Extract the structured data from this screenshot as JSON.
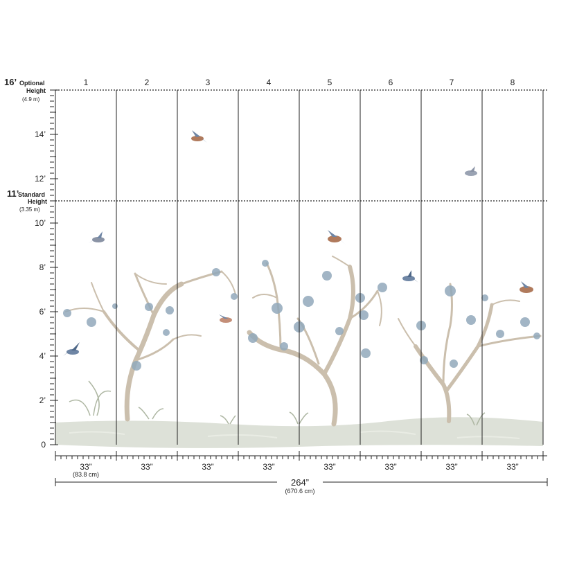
{
  "panels": {
    "numbers": [
      "1",
      "2",
      "3",
      "4",
      "5",
      "6",
      "7",
      "8"
    ],
    "width_labels": [
      "33”",
      "33”",
      "33”",
      "33”",
      "33”",
      "33”",
      "33”",
      "33”"
    ],
    "width_metric": "(83.8 cm)"
  },
  "total": {
    "label": "264”",
    "metric": "(670.6 cm)"
  },
  "heights": {
    "optional": {
      "value": "16’",
      "word1": "Optional",
      "word2": "Height",
      "metric": "(4.9 m)"
    },
    "standard": {
      "value": "11’",
      "word1": "Standard",
      "word2": "Height",
      "metric": "(3.35 m)"
    },
    "scale_labels": [
      "0",
      "2’",
      "4’",
      "6’",
      "8’",
      "10’",
      "12’",
      "14’"
    ]
  },
  "colors": {
    "line": "#222222",
    "ground": "#d9ddd3",
    "trunk": "#c9bfad",
    "blossom": "#8fa6b8",
    "bird": "#6f86a5",
    "bird_breast": "#b07a5c"
  }
}
